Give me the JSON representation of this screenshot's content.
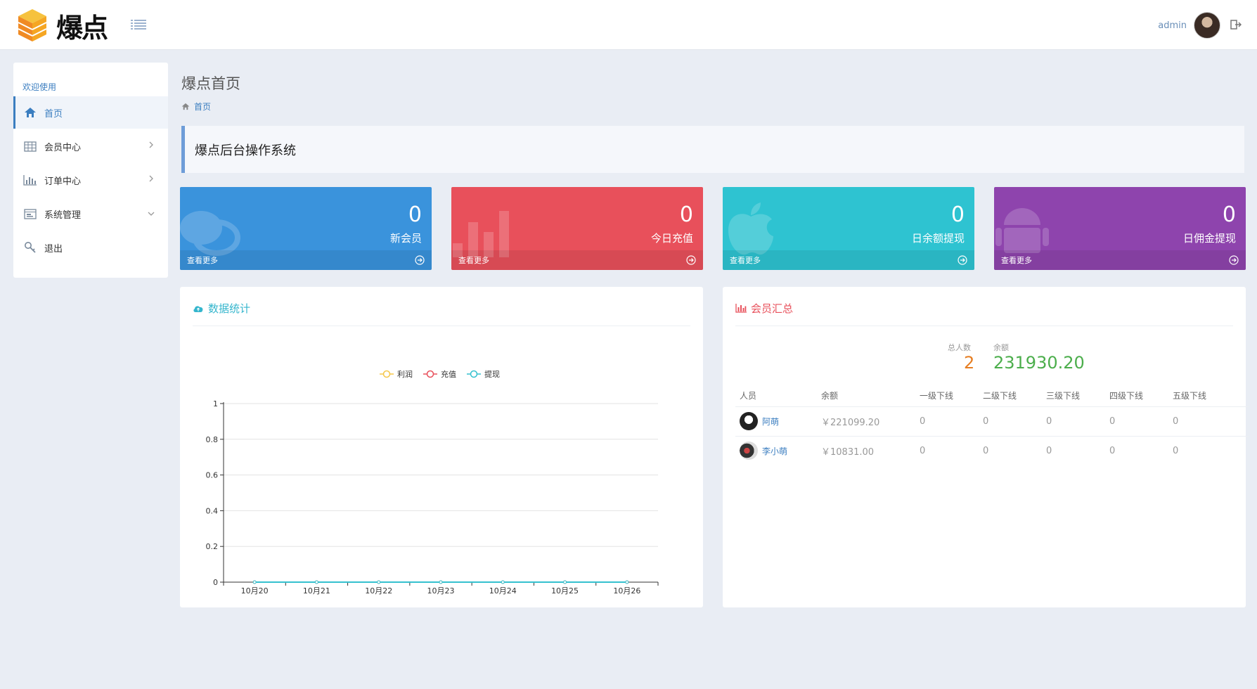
{
  "header": {
    "logo_text": "爆点",
    "user_name": "admin"
  },
  "sidebar": {
    "title": "欢迎使用",
    "items": [
      {
        "label": "首页",
        "icon": "home-icon",
        "active": true
      },
      {
        "label": "会员中心",
        "icon": "table-icon",
        "arrow": "right"
      },
      {
        "label": "订单中心",
        "icon": "bar-chart-icon",
        "arrow": "right"
      },
      {
        "label": "系统管理",
        "icon": "panel-icon",
        "arrow": "down"
      },
      {
        "label": "退出",
        "icon": "key-icon"
      }
    ]
  },
  "main": {
    "page_title": "爆点首页",
    "breadcrumb": "首页",
    "welcome": "爆点后台操作系统"
  },
  "cards": [
    {
      "value": "0",
      "label": "新会员",
      "more": "查看更多",
      "color": "#3a93dc",
      "icon": "chat-bubble-icon"
    },
    {
      "value": "0",
      "label": "今日充值",
      "more": "查看更多",
      "color": "#e8505b",
      "icon": "bar-chart-icon"
    },
    {
      "value": "0",
      "label": "日余额提现",
      "more": "查看更多",
      "color": "#2ec3d1",
      "icon": "apple-icon"
    },
    {
      "value": "0",
      "label": "日佣金提现",
      "more": "查看更多",
      "color": "#8e44ad",
      "icon": "android-icon"
    }
  ],
  "stats_panel": {
    "title": "数据统计",
    "title_color": "#35b6cd"
  },
  "chart_data": {
    "type": "line",
    "x": [
      "10月20",
      "10月21",
      "10月22",
      "10月23",
      "10月24",
      "10月25",
      "10月26"
    ],
    "series": [
      {
        "name": "利润",
        "values": [
          0,
          0,
          0,
          0,
          0,
          0,
          0
        ],
        "color": "#f5c74a"
      },
      {
        "name": "充值",
        "values": [
          0,
          0,
          0,
          0,
          0,
          0,
          0
        ],
        "color": "#e8505b"
      },
      {
        "name": "提现",
        "values": [
          0,
          0,
          0,
          0,
          0,
          0,
          0
        ],
        "color": "#35c1cf"
      }
    ],
    "yticks": [
      "0",
      "0.2",
      "0.4",
      "0.6",
      "0.8",
      "1"
    ],
    "ylim": [
      0,
      1
    ],
    "grid": true,
    "legend": "top"
  },
  "member_panel": {
    "title": "会员汇总",
    "title_color": "#e8505b",
    "total_label": "总人数",
    "total_value": "2",
    "balance_label": "余额",
    "balance_value": "231930.20",
    "columns": [
      "人员",
      "余额",
      "一级下线",
      "二级下线",
      "三级下线",
      "四级下线",
      "五级下线"
    ],
    "rows": [
      {
        "name": "阿萌",
        "balance": "￥221099.20",
        "l1": "0",
        "l2": "0",
        "l3": "0",
        "l4": "0",
        "l5": "0"
      },
      {
        "name": "李小萌",
        "balance": "￥10831.00",
        "l1": "0",
        "l2": "0",
        "l3": "0",
        "l4": "0",
        "l5": "0"
      }
    ]
  }
}
